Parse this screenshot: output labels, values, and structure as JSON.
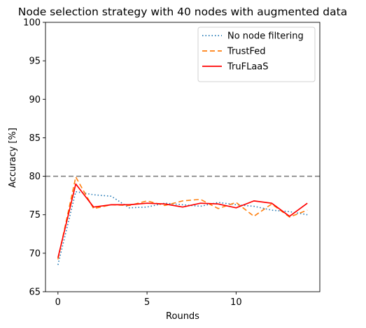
{
  "chart_data": {
    "type": "line",
    "title": "Node selection strategy with 40 nodes with augmented data",
    "xlabel": "Rounds",
    "ylabel": "Accuracy [%]",
    "xlim": [
      -0.7,
      14.7
    ],
    "ylim": [
      65,
      100
    ],
    "xticks": [
      0,
      5,
      10
    ],
    "yticks": [
      65,
      70,
      75,
      80,
      85,
      90,
      95,
      100
    ],
    "x": [
      0,
      1,
      2,
      3,
      4,
      5,
      6,
      7,
      8,
      9,
      10,
      11,
      12,
      13,
      14
    ],
    "reference_line": {
      "y": 80,
      "color": "#808080",
      "style": "dashed"
    },
    "legend_position": "top-right",
    "series": [
      {
        "name": "No node filtering",
        "color": "#1f77b4",
        "style": "dotted",
        "values": [
          68.5,
          78.0,
          77.6,
          77.4,
          75.9,
          76.0,
          76.5,
          76.3,
          76.1,
          76.6,
          76.3,
          76.1,
          75.6,
          75.4,
          75.0
        ]
      },
      {
        "name": "TrustFed",
        "color": "#ff7f0e",
        "style": "dashed",
        "values": [
          69.2,
          79.9,
          75.8,
          76.3,
          76.2,
          76.8,
          76.2,
          76.8,
          77.0,
          75.8,
          76.6,
          74.8,
          76.4,
          74.7,
          75.6
        ]
      },
      {
        "name": "TruFLaaS",
        "color": "#ff0000",
        "style": "solid",
        "values": [
          69.4,
          79.0,
          76.0,
          76.3,
          76.3,
          76.5,
          76.4,
          76.0,
          76.5,
          76.4,
          75.9,
          76.8,
          76.5,
          74.8,
          76.5
        ]
      }
    ]
  }
}
